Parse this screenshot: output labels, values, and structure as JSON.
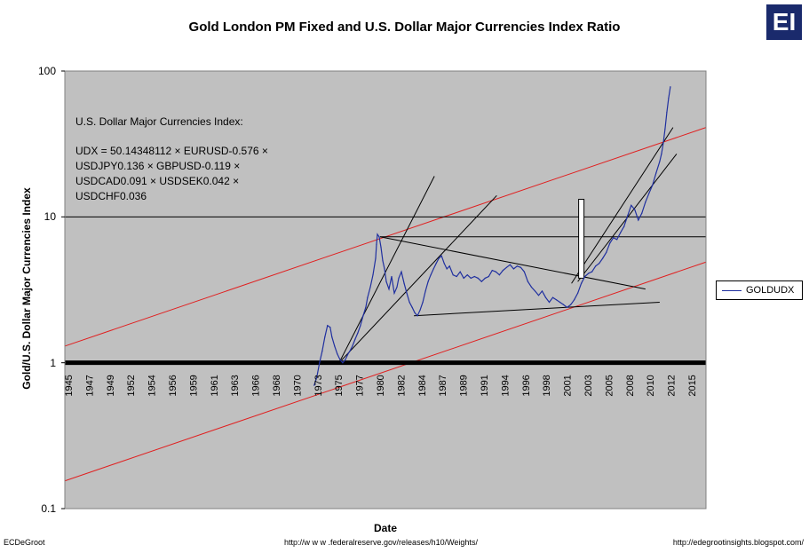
{
  "logo": "EI",
  "chart_data": {
    "type": "line",
    "title": "Gold London PM Fixed and U.S. Dollar Major Currencies Index Ratio",
    "xlabel": "Date",
    "ylabel": "Gold/U.S. Dollar Major Currencies Index",
    "yscale": "log",
    "ylim": [
      0.1,
      100
    ],
    "xlim": [
      1945,
      2017
    ],
    "y_ticks": [
      "0.1",
      "1",
      "10",
      "100"
    ],
    "x_tick_labels": [
      "1945",
      "1947",
      "1949",
      "1952",
      "1954",
      "1956",
      "1959",
      "1961",
      "1963",
      "1966",
      "1968",
      "1970",
      "1973",
      "1975",
      "1977",
      "1980",
      "1982",
      "1984",
      "1987",
      "1989",
      "1991",
      "1994",
      "1996",
      "1998",
      "2001",
      "2003",
      "2005",
      "2008",
      "2010",
      "2012",
      "2015"
    ],
    "legend": {
      "position": "right",
      "entries": [
        "GOLDUDX"
      ]
    },
    "annotation": [
      "U.S. Dollar Major Currencies Index:",
      "UDX = 50.14348112 × EURUSD-0.576 ×",
      "USDJPY0.136 × GBPUSD-0.119 ×",
      "USDCAD0.091 × USDSEK0.042 ×",
      "USDCHF0.036"
    ],
    "series": [
      {
        "name": "GOLDUDX",
        "color": "#1f2f9f",
        "x": [
          1973.0,
          1973.3,
          1973.6,
          1973.9,
          1974.2,
          1974.5,
          1974.8,
          1975.0,
          1975.3,
          1975.6,
          1975.9,
          1976.2,
          1976.5,
          1976.8,
          1977.0,
          1977.3,
          1977.6,
          1977.9,
          1978.2,
          1978.5,
          1978.8,
          1979.0,
          1979.3,
          1979.6,
          1979.9,
          1980.0,
          1980.1,
          1980.3,
          1980.5,
          1980.7,
          1980.9,
          1981.1,
          1981.4,
          1981.7,
          1982.0,
          1982.3,
          1982.5,
          1982.8,
          1983.1,
          1983.4,
          1983.7,
          1984.0,
          1984.3,
          1984.6,
          1984.9,
          1985.2,
          1985.5,
          1985.8,
          1986.1,
          1986.4,
          1986.7,
          1987.0,
          1987.3,
          1987.6,
          1987.9,
          1988.2,
          1988.6,
          1989.0,
          1989.4,
          1989.8,
          1990.2,
          1990.6,
          1991.0,
          1991.4,
          1991.8,
          1992.2,
          1992.6,
          1993.0,
          1993.4,
          1993.8,
          1994.2,
          1994.6,
          1995.0,
          1995.4,
          1995.8,
          1996.2,
          1996.6,
          1997.0,
          1997.4,
          1997.8,
          1998.2,
          1998.6,
          1999.0,
          1999.4,
          1999.8,
          2000.2,
          2000.6,
          2001.0,
          2001.4,
          2001.8,
          2002.2,
          2002.6,
          2003.0,
          2003.4,
          2003.8,
          2004.2,
          2004.6,
          2005.0,
          2005.4,
          2005.8,
          2006.2,
          2006.6,
          2007.0,
          2007.4,
          2007.8,
          2008.2,
          2008.6,
          2009.0,
          2009.4,
          2009.8,
          2010.2,
          2010.6,
          2011.0,
          2011.4,
          2011.8,
          2012.0,
          2012.2,
          2012.4,
          2012.6,
          2012.8,
          2013.0
        ],
        "y": [
          0.7,
          0.8,
          1.0,
          1.2,
          1.5,
          1.8,
          1.75,
          1.5,
          1.3,
          1.15,
          1.05,
          1.0,
          1.05,
          1.15,
          1.2,
          1.3,
          1.45,
          1.6,
          1.8,
          2.1,
          2.4,
          2.8,
          3.3,
          4.0,
          5.2,
          6.5,
          7.6,
          7.3,
          6.2,
          5.0,
          4.4,
          3.6,
          3.2,
          3.9,
          3.0,
          3.3,
          3.8,
          4.2,
          3.5,
          3.0,
          2.6,
          2.4,
          2.2,
          2.1,
          2.3,
          2.6,
          3.1,
          3.6,
          4.0,
          4.4,
          4.8,
          5.2,
          5.4,
          4.8,
          4.4,
          4.6,
          4.0,
          3.9,
          4.2,
          3.8,
          4.0,
          3.8,
          3.9,
          3.8,
          3.6,
          3.8,
          3.9,
          4.3,
          4.2,
          4.0,
          4.3,
          4.5,
          4.7,
          4.4,
          4.6,
          4.5,
          4.2,
          3.6,
          3.3,
          3.1,
          2.9,
          3.1,
          2.8,
          2.6,
          2.8,
          2.7,
          2.6,
          2.5,
          2.4,
          2.5,
          2.7,
          3.0,
          3.5,
          3.9,
          4.1,
          4.2,
          4.6,
          4.8,
          5.2,
          5.7,
          6.6,
          7.2,
          7.0,
          7.8,
          8.6,
          10.2,
          12.0,
          11.2,
          9.5,
          10.6,
          12.6,
          14.5,
          16.5,
          20.0,
          24.0,
          27.0,
          32.0,
          40.0,
          52.0,
          65.0,
          78.0
        ]
      }
    ],
    "reference_lines": [
      {
        "name": "red-upper-channel",
        "color": "#e02020",
        "x": [
          1945,
          2017
        ],
        "y": [
          1.3,
          41
        ]
      },
      {
        "name": "red-lower-channel",
        "color": "#e02020",
        "x": [
          1945,
          2017
        ],
        "y": [
          0.155,
          4.9
        ]
      },
      {
        "name": "horizontal-10",
        "color": "#000000",
        "x": [
          1945,
          2017
        ],
        "y": [
          10,
          10
        ]
      },
      {
        "name": "horizontal-1980-top",
        "color": "#000000",
        "x": [
          1980.4,
          2017
        ],
        "y": [
          7.3,
          7.3
        ]
      },
      {
        "name": "trend-1976-steep",
        "color": "#000000",
        "x": [
          1975.8,
          1986.5
        ],
        "y": [
          1.0,
          19
        ]
      },
      {
        "name": "trend-1976-shallow",
        "color": "#000000",
        "x": [
          1975.8,
          1993.5
        ],
        "y": [
          1.0,
          14
        ]
      },
      {
        "name": "falling-resistance",
        "color": "#000000",
        "x": [
          1980.4,
          2010.2
        ],
        "y": [
          7.3,
          3.2
        ]
      },
      {
        "name": "rising-support",
        "color": "#000000",
        "x": [
          1984.2,
          2011.8
        ],
        "y": [
          2.1,
          2.6
        ]
      },
      {
        "name": "channel-upper-2002",
        "color": "#000000",
        "x": [
          2001.9,
          2013.3
        ],
        "y": [
          3.5,
          41
        ]
      },
      {
        "name": "channel-lower-2002",
        "color": "#000000",
        "x": [
          2002.6,
          2013.7
        ],
        "y": [
          3.6,
          27
        ]
      }
    ]
  },
  "footer": {
    "left": "ECDeGroot",
    "middle": "http://w w w .federalreserve.gov/releases/h10/Weights/",
    "right": "http://edegrootinsights.blogspot.com/"
  }
}
